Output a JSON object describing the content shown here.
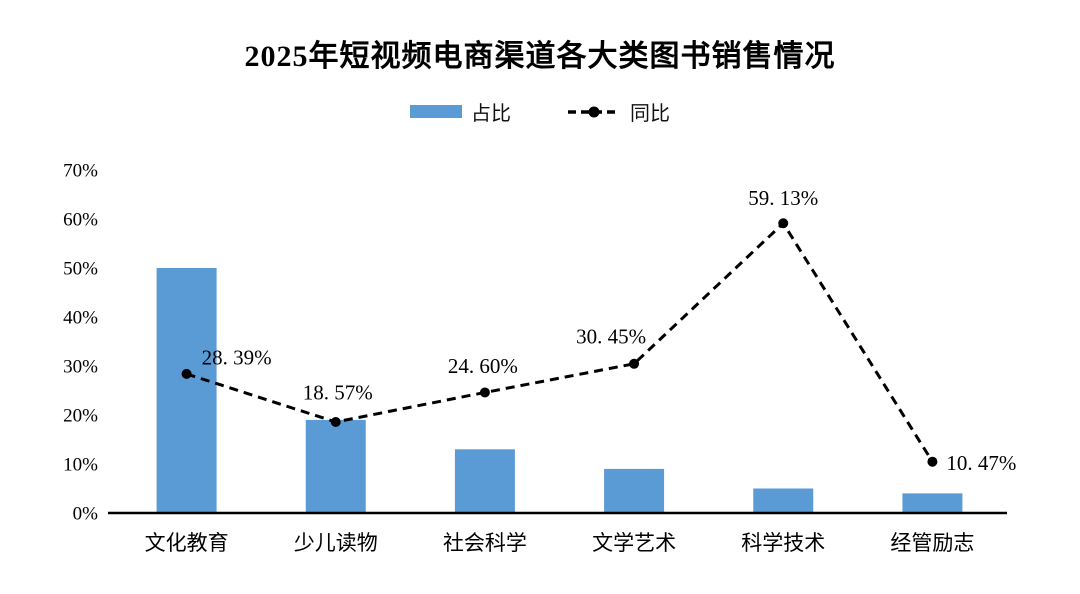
{
  "title": "2025年短视频电商渠道各大类图书销售情况",
  "colors": {
    "bar_fill": "#5B9BD5",
    "line": "#000000",
    "axis": "#000000",
    "text": "#000000",
    "background": "#FFFFFF"
  },
  "legend": {
    "items": [
      {
        "label": "占比",
        "swatch": "blue-bar"
      },
      {
        "label": "同比",
        "swatch": "black-dashed-line-with-dot"
      }
    ]
  },
  "chart_data": {
    "type": "bar",
    "subtype": "combo-bar-dashed-line",
    "title": "2025年短视频电商渠道各大类图书销售情况",
    "categories": [
      "文化教育",
      "少儿读物",
      "社会科学",
      "文学艺术",
      "科学技术",
      "经管励志"
    ],
    "series": [
      {
        "name": "占比",
        "type": "bar",
        "color": "#5B9BD5",
        "values": [
          50,
          19,
          13,
          9,
          5,
          4
        ]
      },
      {
        "name": "同比",
        "type": "line",
        "line_style": "dashed",
        "marker": "filled-circle",
        "color": "#000000",
        "values": [
          28.39,
          18.57,
          24.6,
          30.45,
          59.13,
          10.47
        ],
        "data_labels": [
          "28. 39%",
          "18. 57%",
          "24. 60%",
          "30. 45%",
          "59. 13%",
          "10. 47%"
        ]
      }
    ],
    "yticks": [
      "0%",
      "10%",
      "20%",
      "30%",
      "40%",
      "50%",
      "60%",
      "70%"
    ],
    "ylim": [
      0,
      70
    ],
    "grid": false,
    "legend_position": "top-center",
    "xlabel": "",
    "ylabel": ""
  }
}
